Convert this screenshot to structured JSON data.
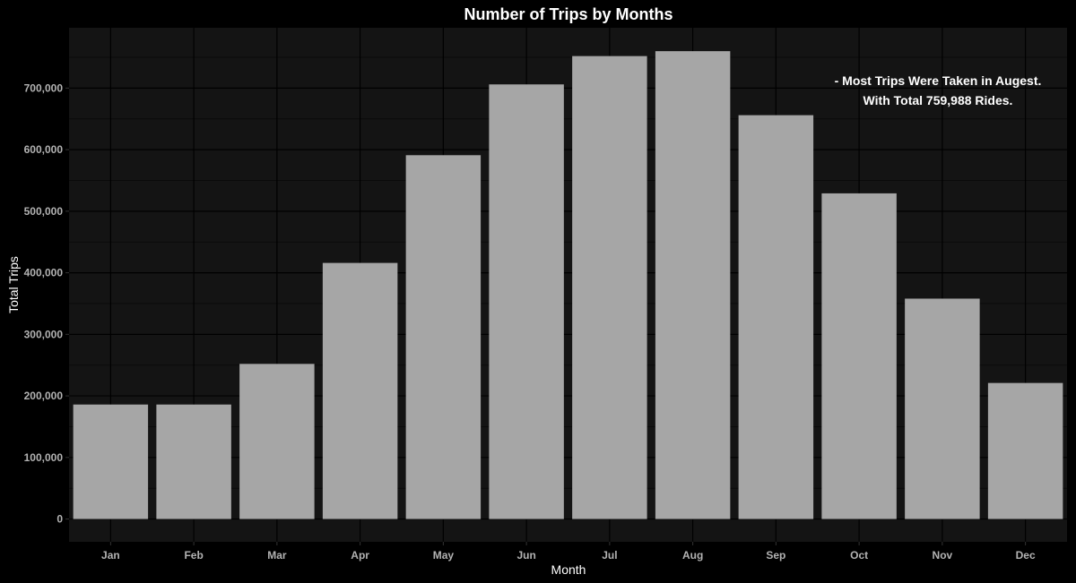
{
  "colors": {
    "background": "#000000",
    "panel": "#141414",
    "grid_major": "#000000",
    "grid_minor": "#0a0a0a",
    "bar": "#a6a6a6",
    "text": "#ffffff",
    "tick_text": "#b3b3b3"
  },
  "chart_data": {
    "type": "bar",
    "title": "Number of Trips by Months",
    "xlabel": "Month",
    "ylabel": "Total Trips",
    "categories": [
      "Jan",
      "Feb",
      "Mar",
      "Apr",
      "May",
      "Jun",
      "Jul",
      "Aug",
      "Sep",
      "Oct",
      "Nov",
      "Dec"
    ],
    "values": [
      186000,
      186000,
      252000,
      416000,
      591000,
      706000,
      752000,
      759988,
      656000,
      529000,
      358000,
      221000
    ],
    "ylim": [
      -37000,
      798000
    ],
    "yticks": [
      0,
      100000,
      200000,
      300000,
      400000,
      500000,
      600000,
      700000
    ],
    "ytick_labels": [
      "0",
      "100,000",
      "200,000",
      "300,000",
      "400,000",
      "500,000",
      "600,000",
      "700,000"
    ],
    "grid": true,
    "legend": "none",
    "annotation": {
      "lines": [
        "- Most Trips Were Taken in Augest.",
        "With Total 759,988 Rides."
      ]
    }
  }
}
